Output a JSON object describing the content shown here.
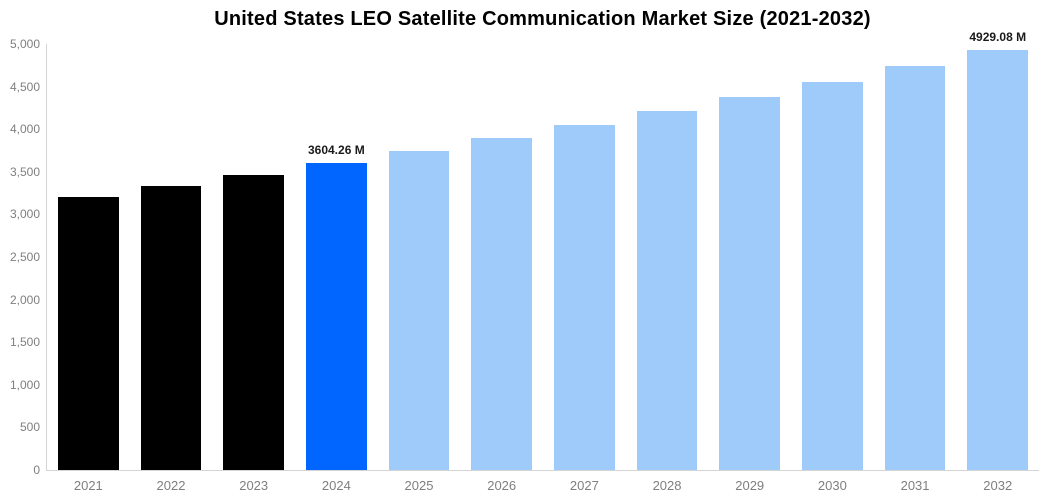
{
  "chart_data": {
    "type": "bar",
    "title": "United States LEO Satellite Communication Market Size (2021-2032)",
    "xlabel": "",
    "ylabel": "",
    "unit": "M",
    "categories": [
      "2021",
      "2022",
      "2023",
      "2024",
      "2025",
      "2026",
      "2027",
      "2028",
      "2029",
      "2030",
      "2031",
      "2032"
    ],
    "values": [
      3205,
      3333,
      3466,
      3604.26,
      3748,
      3898,
      4053,
      4215,
      4383,
      4558,
      4740,
      4929.08
    ],
    "roles": [
      "historical",
      "historical",
      "historical",
      "current",
      "forecast",
      "forecast",
      "forecast",
      "forecast",
      "forecast",
      "forecast",
      "forecast",
      "forecast"
    ],
    "data_labels": {
      "2024": "3604.26 M",
      "2032": "4929.08 M"
    },
    "y_ticks": [
      "0",
      "500",
      "1,000",
      "1,500",
      "2,000",
      "2,500",
      "3,000",
      "3,500",
      "4,000",
      "4,500",
      "5,000"
    ],
    "ylim": [
      0,
      5000
    ],
    "grid": false,
    "legend": false,
    "colors": {
      "historical": "#000000",
      "current": "#0066ff",
      "forecast": "#9ecbfa",
      "axis": "#d4d4d4",
      "tick_labels": "#7f7f7f",
      "value_labels": "#1a1a1a",
      "background": "#ffffff"
    }
  }
}
